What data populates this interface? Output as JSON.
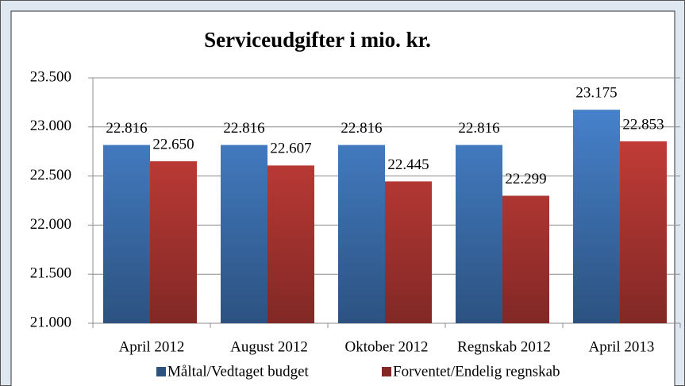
{
  "chart_data": {
    "type": "bar",
    "title": "Serviceudgifter i mio. kr.",
    "categories": [
      "April 2012",
      "August 2012",
      "Oktober 2012",
      "Regnskab 2012",
      "April 2013"
    ],
    "series": [
      {
        "name": "Måltal/Vedtaget budget",
        "color": "#4a88d6",
        "values": [
          22816,
          22816,
          22816,
          22816,
          23175
        ],
        "value_labels": [
          "22.816",
          "22.816",
          "22.816",
          "22.816",
          "23.175"
        ]
      },
      {
        "name": "Forventet/Endelig regnskab",
        "color": "#d7423d",
        "values": [
          22650,
          22607,
          22445,
          22299,
          22853
        ],
        "value_labels": [
          "22.650",
          "22.607",
          "22.445",
          "22.299",
          "22.853"
        ]
      }
    ],
    "ylim": [
      21000,
      23500
    ],
    "yticks": [
      {
        "value": 21000,
        "label": "21.000"
      },
      {
        "value": 21500,
        "label": "21.500"
      },
      {
        "value": 22000,
        "label": "22.000"
      },
      {
        "value": 22500,
        "label": "22.500"
      },
      {
        "value": 23000,
        "label": "23.000"
      },
      {
        "value": 23500,
        "label": "23.500"
      }
    ],
    "grid": true,
    "legend": "bottom"
  }
}
